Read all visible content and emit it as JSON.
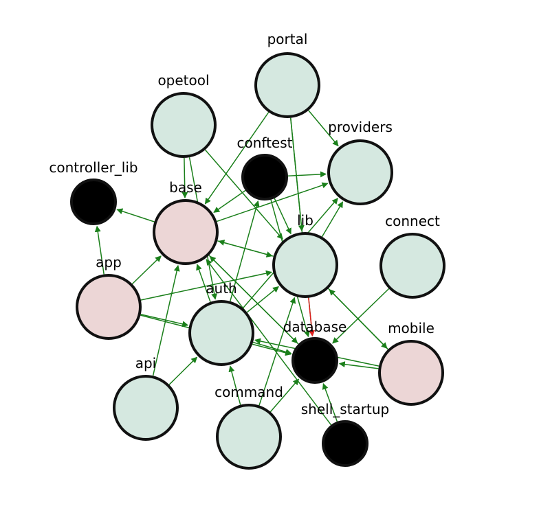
{
  "colors": {
    "light": "#d5e8e0",
    "pink": "#ecd6d6",
    "dark": "#000000",
    "edge": "#1a7f1a",
    "edge_highlight": "#e02020"
  },
  "nodes": [
    {
      "id": "portal",
      "label": "portal",
      "fill": "light"
    },
    {
      "id": "opetool",
      "label": "opetool",
      "fill": "light"
    },
    {
      "id": "providers",
      "label": "providers",
      "fill": "light"
    },
    {
      "id": "conftest",
      "label": "conftest",
      "fill": "dark"
    },
    {
      "id": "controller_lib",
      "label": "controller_lib",
      "fill": "dark"
    },
    {
      "id": "base",
      "label": "base",
      "fill": "pink"
    },
    {
      "id": "lib",
      "label": "lib",
      "fill": "light"
    },
    {
      "id": "connect",
      "label": "connect",
      "fill": "light"
    },
    {
      "id": "app",
      "label": "app",
      "fill": "pink"
    },
    {
      "id": "auth",
      "label": "auth",
      "fill": "light"
    },
    {
      "id": "database",
      "label": "database",
      "fill": "dark"
    },
    {
      "id": "mobile",
      "label": "mobile",
      "fill": "pink"
    },
    {
      "id": "api",
      "label": "api",
      "fill": "light"
    },
    {
      "id": "command",
      "label": "command",
      "fill": "light"
    },
    {
      "id": "shell_startup",
      "label": "shell_startup",
      "fill": "dark"
    }
  ],
  "edges": [
    {
      "from": "portal",
      "to": "base"
    },
    {
      "from": "portal",
      "to": "lib"
    },
    {
      "from": "portal",
      "to": "providers"
    },
    {
      "from": "portal",
      "to": "database"
    },
    {
      "from": "opetool",
      "to": "base"
    },
    {
      "from": "opetool",
      "to": "lib"
    },
    {
      "from": "opetool",
      "to": "auth"
    },
    {
      "from": "conftest",
      "to": "base"
    },
    {
      "from": "conftest",
      "to": "lib"
    },
    {
      "from": "conftest",
      "to": "providers"
    },
    {
      "from": "conftest",
      "to": "database"
    },
    {
      "from": "base",
      "to": "controller_lib"
    },
    {
      "from": "base",
      "to": "lib"
    },
    {
      "from": "base",
      "to": "providers"
    },
    {
      "from": "base",
      "to": "database"
    },
    {
      "from": "app",
      "to": "controller_lib"
    },
    {
      "from": "app",
      "to": "base"
    },
    {
      "from": "app",
      "to": "auth"
    },
    {
      "from": "app",
      "to": "lib"
    },
    {
      "from": "app",
      "to": "database"
    },
    {
      "from": "api",
      "to": "base"
    },
    {
      "from": "api",
      "to": "auth"
    },
    {
      "from": "auth",
      "to": "base"
    },
    {
      "from": "auth",
      "to": "conftest"
    },
    {
      "from": "auth",
      "to": "lib"
    },
    {
      "from": "auth",
      "to": "providers"
    },
    {
      "from": "auth",
      "to": "database"
    },
    {
      "from": "command",
      "to": "auth"
    },
    {
      "from": "command",
      "to": "lib"
    },
    {
      "from": "command",
      "to": "database"
    },
    {
      "from": "lib",
      "to": "providers"
    },
    {
      "from": "lib",
      "to": "base"
    },
    {
      "from": "lib",
      "to": "database",
      "highlight": true
    },
    {
      "from": "lib",
      "to": "mobile"
    },
    {
      "from": "connect",
      "to": "database"
    },
    {
      "from": "mobile",
      "to": "lib"
    },
    {
      "from": "mobile",
      "to": "database"
    },
    {
      "from": "mobile",
      "to": "auth"
    },
    {
      "from": "shell_startup",
      "to": "database"
    },
    {
      "from": "shell_startup",
      "to": "base"
    },
    {
      "from": "database",
      "to": "base"
    }
  ]
}
